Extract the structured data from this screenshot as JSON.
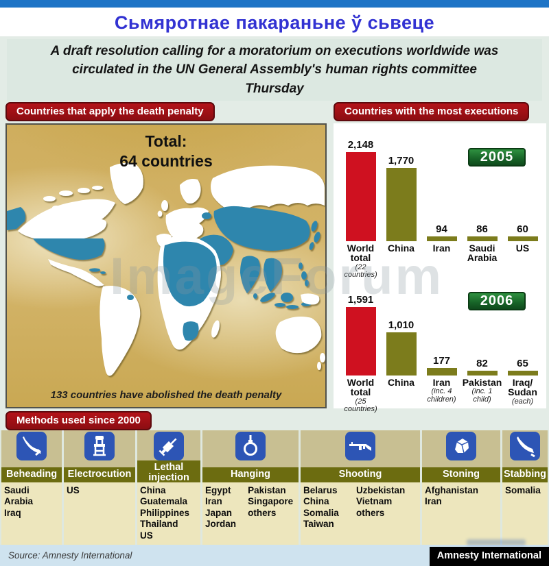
{
  "page": {
    "top_title": "Сьмяротнае пакараньне ў сьвеце",
    "subtitle": "A draft resolution calling for a moratorium on executions worldwide was circulated in the UN General Assembly's human rights committee Thursday",
    "watermark": "ImageForum"
  },
  "map_section": {
    "banner": "Countries that apply the death penalty",
    "total_line1": "Total:",
    "total_line2": "64 countries",
    "caption": "133 countries have abolished the death penalty"
  },
  "executions_section": {
    "banner": "Countries with the most executions"
  },
  "chart_data": [
    {
      "type": "bar",
      "year_badge": "2005",
      "title": "Countries with the most executions — 2005",
      "ylim": [
        0,
        2148
      ],
      "bars": [
        {
          "label": "World total",
          "value": 2148,
          "value_label": "2,148",
          "note": "(22 countries)",
          "color": "#cf1120"
        },
        {
          "label": "China",
          "value": 1770,
          "value_label": "1,770",
          "note": "",
          "color": "#7c7c1c"
        },
        {
          "label": "Iran",
          "value": 94,
          "value_label": "94",
          "note": "",
          "color": "#7c7c1c"
        },
        {
          "label": "Saudi Arabia",
          "value": 86,
          "value_label": "86",
          "note": "",
          "color": "#7c7c1c"
        },
        {
          "label": "US",
          "value": 60,
          "value_label": "60",
          "note": "",
          "color": "#7c7c1c"
        }
      ]
    },
    {
      "type": "bar",
      "year_badge": "2006",
      "title": "Countries with the most executions — 2006",
      "ylim": [
        0,
        1591
      ],
      "bars": [
        {
          "label": "World total",
          "value": 1591,
          "value_label": "1,591",
          "note": "(25 countries)",
          "color": "#cf1120"
        },
        {
          "label": "China",
          "value": 1010,
          "value_label": "1,010",
          "note": "",
          "color": "#7c7c1c"
        },
        {
          "label": "Iran",
          "value": 177,
          "value_label": "177",
          "note": "(inc. 4 children)",
          "color": "#7c7c1c"
        },
        {
          "label": "Pakistan",
          "value": 82,
          "value_label": "82",
          "note": "(inc. 1 child)",
          "color": "#7c7c1c"
        },
        {
          "label": "Iraq/ Sudan",
          "value": 65,
          "value_label": "65",
          "note": "(each)",
          "color": "#7c7c1c"
        }
      ]
    }
  ],
  "methods": {
    "banner": "Methods used since 2000",
    "items": [
      {
        "label": "Beheading",
        "icon": "sword-icon",
        "countries": [
          "Saudi Arabia",
          "Iraq"
        ]
      },
      {
        "label": "Electrocution",
        "icon": "electric-chair-icon",
        "countries": [
          "US"
        ]
      },
      {
        "label": "Lethal injection",
        "icon": "syringe-icon",
        "countries": [
          "China",
          "Guatemala",
          "Philippines",
          "Thailand",
          "US"
        ]
      },
      {
        "label": "Hanging",
        "icon": "noose-icon",
        "countries": [
          "Egypt",
          "Iran",
          "Japan",
          "Jordan"
        ],
        "countries2": [
          "Pakistan",
          "Singapore",
          "others"
        ]
      },
      {
        "label": "Shooting",
        "icon": "rifle-icon",
        "countries": [
          "Belarus",
          "China",
          "Somalia",
          "Taiwan"
        ],
        "countries2": [
          "Uzbekistan",
          "Vietnam",
          "others"
        ]
      },
      {
        "label": "Stoning",
        "icon": "stone-icon",
        "countries": [
          "Afghanistan",
          "Iran"
        ]
      },
      {
        "label": "Stabbing",
        "icon": "knife-icon",
        "countries": [
          "Somalia"
        ]
      }
    ]
  },
  "footer": {
    "source": "Source: Amnesty International",
    "credit": "Amnesty International"
  },
  "colors": {
    "topbar_blue": "#1e74c6",
    "title_blue": "#3232d2",
    "banner_red": "#9e1016",
    "bar_red": "#cf1120",
    "bar_olive": "#7c7c1c",
    "badge_green": "#1e6c2e",
    "icon_blue": "#2d55b5",
    "map_country_blue": "#2e86ad"
  }
}
